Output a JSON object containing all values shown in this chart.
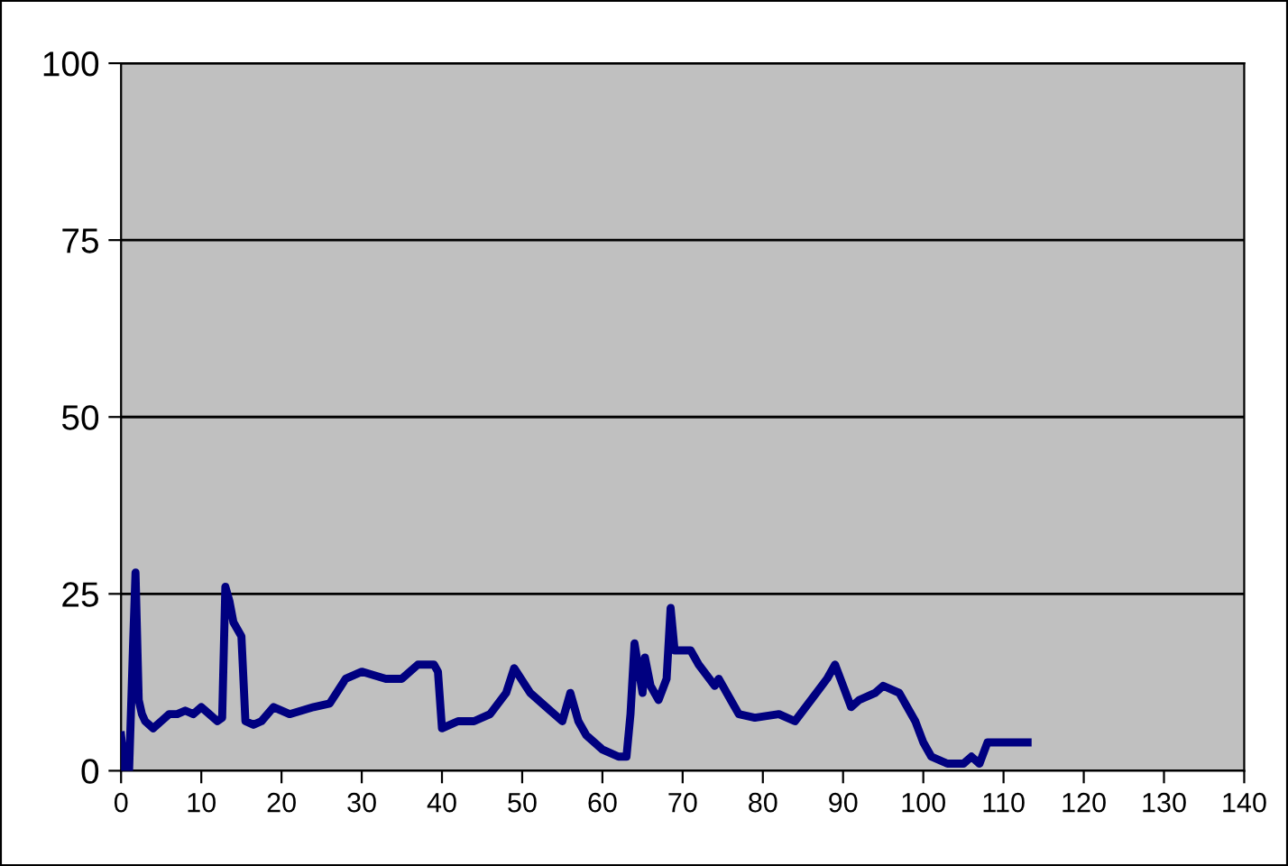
{
  "chart_data": {
    "type": "line",
    "xlim": [
      0,
      140
    ],
    "xticks": [
      0,
      10,
      20,
      30,
      40,
      50,
      60,
      70,
      80,
      90,
      100,
      110,
      120,
      130,
      140
    ],
    "ylim": [
      0,
      100
    ],
    "yticks": [
      0,
      25,
      50,
      75,
      100
    ],
    "grid": "y",
    "marker": "none",
    "line_style": "solid",
    "series": [
      {
        "color": "#000080",
        "x": [
          0,
          0.5,
          1,
          1.5,
          1.8,
          2.2,
          2.6,
          3,
          4,
          5,
          6,
          7,
          8,
          9,
          10,
          11,
          12,
          12.6,
          13,
          13.5,
          14,
          15,
          15.5,
          16.5,
          17.5,
          19,
          21,
          24,
          26,
          28,
          30,
          33,
          35,
          37,
          39,
          39.5,
          40,
          42,
          44,
          46,
          48,
          49,
          51,
          53,
          55,
          56,
          57,
          58,
          60,
          62,
          63,
          63.5,
          64,
          65,
          65.3,
          66,
          67,
          68,
          68.5,
          69,
          71,
          72,
          74,
          74.5,
          76,
          77,
          79,
          82,
          84,
          86,
          88,
          89,
          90,
          91,
          92,
          94,
          95,
          97,
          99,
          100,
          101,
          103,
          105,
          106,
          107,
          108,
          110,
          113
        ],
        "values": [
          5,
          0,
          0,
          18,
          28,
          10,
          8,
          7,
          6,
          7,
          8,
          8,
          8.5,
          8,
          9,
          8,
          7,
          7.5,
          26,
          24,
          21,
          19,
          7,
          6.5,
          7,
          9,
          8,
          9,
          9.5,
          13,
          14,
          13,
          13,
          15,
          15,
          14,
          6,
          7,
          7,
          8,
          11,
          14.5,
          11,
          9,
          7,
          11,
          7,
          5,
          3,
          2,
          2,
          8,
          18,
          11,
          16,
          12,
          10,
          13,
          23,
          17,
          17,
          15,
          12,
          13,
          10,
          8,
          7.5,
          8,
          7,
          10,
          13,
          15,
          12,
          9,
          10,
          11,
          12,
          11,
          7,
          4,
          2,
          1,
          1,
          2,
          1,
          4,
          4,
          4
        ]
      }
    ]
  }
}
